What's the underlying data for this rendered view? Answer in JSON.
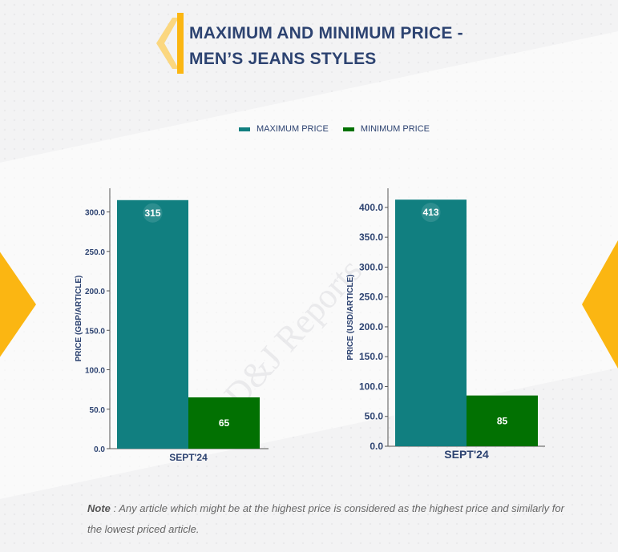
{
  "title_line1": "MAXIMUM AND MINIMUM PRICE -",
  "title_line2": "MEN’S JEANS STYLES",
  "legend": [
    {
      "label": "MAXIMUM PRICE",
      "color": "#117f80"
    },
    {
      "label": "MINIMUM PRICE",
      "color": "#027102"
    }
  ],
  "watermark": "D&J Reports",
  "note_label": "Note",
  "note_text": " : Any article which might be at the highest price is considered as the highest price and similarly for the lowest priced article.",
  "chart_data": [
    {
      "type": "bar",
      "categories": [
        "SEPT'24"
      ],
      "series": [
        {
          "name": "MAXIMUM PRICE",
          "values": [
            315
          ],
          "color": "#117f80"
        },
        {
          "name": "MINIMUM PRICE",
          "values": [
            65
          ],
          "color": "#027102"
        }
      ],
      "ylabel": "PRICE (GBP/ARTICLE)",
      "ylim": [
        0,
        330
      ],
      "yticks": [
        0,
        50,
        100,
        150,
        200,
        250,
        300
      ],
      "grid": false,
      "legend": "top-center"
    },
    {
      "type": "bar",
      "categories": [
        "SEPT'24"
      ],
      "series": [
        {
          "name": "MAXIMUM PRICE",
          "values": [
            413
          ],
          "color": "#117f80"
        },
        {
          "name": "MINIMUM PRICE",
          "values": [
            85
          ],
          "color": "#027102"
        }
      ],
      "ylabel": "PRICE (USD/ARTICLE)",
      "ylim": [
        0,
        432
      ],
      "yticks": [
        0,
        50,
        100,
        150,
        200,
        250,
        300,
        350,
        400
      ],
      "grid": false,
      "legend": "top-center"
    }
  ]
}
